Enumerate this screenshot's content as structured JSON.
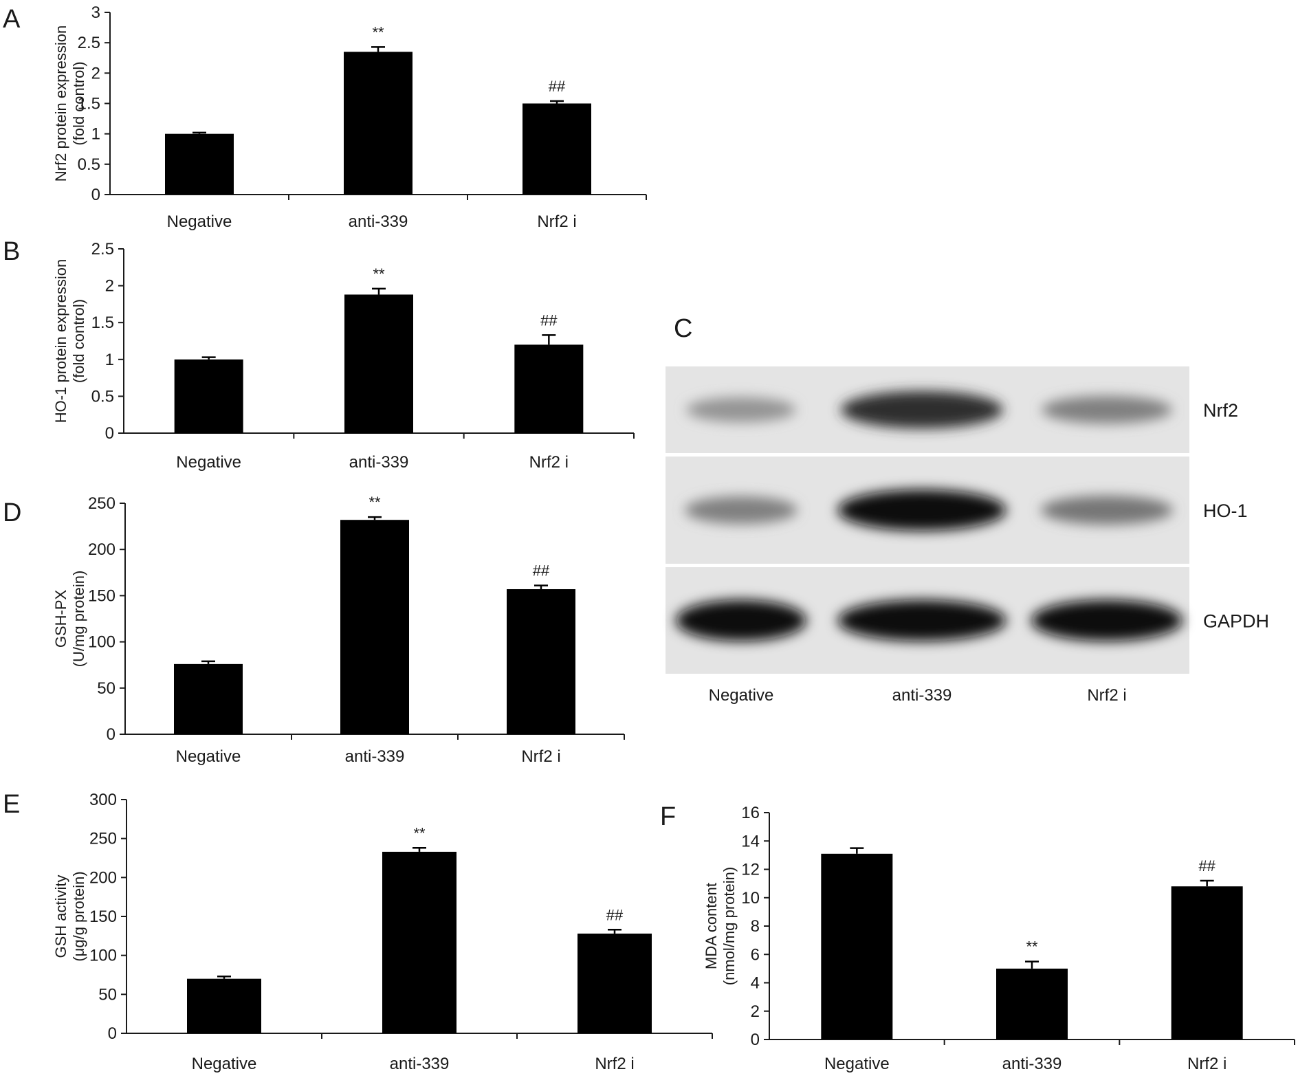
{
  "chart_data": [
    {
      "panel": "A",
      "type": "bar",
      "categories": [
        "Negative",
        "anti-339",
        "Nrf2 i"
      ],
      "values": [
        1.0,
        2.35,
        1.5
      ],
      "errors": [
        0.02,
        0.08,
        0.04
      ],
      "annotations": [
        "",
        "**",
        "##"
      ],
      "ylabel_lines": [
        "Nrf2 protein expression",
        "(fold control)"
      ],
      "ylim": [
        0,
        3
      ],
      "yticks": [
        "0",
        "0.5",
        "1",
        "1.5",
        "2",
        "2.5",
        "3"
      ]
    },
    {
      "panel": "B",
      "type": "bar",
      "categories": [
        "Negative",
        "anti-339",
        "Nrf2 i"
      ],
      "values": [
        1.0,
        1.88,
        1.2
      ],
      "errors": [
        0.03,
        0.08,
        0.13
      ],
      "annotations": [
        "",
        "**",
        "##"
      ],
      "ylabel_lines": [
        "HO-1 protein expression",
        "(fold control)"
      ],
      "ylim": [
        0,
        2.5
      ],
      "yticks": [
        "0",
        "0.5",
        "1",
        "1.5",
        "2",
        "2.5"
      ]
    },
    {
      "panel": "D",
      "type": "bar",
      "categories": [
        "Negative",
        "anti-339",
        "Nrf2 i"
      ],
      "values": [
        76,
        232,
        157
      ],
      "errors": [
        3,
        3,
        4
      ],
      "annotations": [
        "",
        "**",
        "##"
      ],
      "ylabel_lines": [
        "GSH-PX",
        "(U/mg protein)"
      ],
      "ylim": [
        0,
        250
      ],
      "yticks": [
        "0",
        "50",
        "100",
        "150",
        "200",
        "250"
      ]
    },
    {
      "panel": "E",
      "type": "bar",
      "categories": [
        "Negative",
        "anti-339",
        "Nrf2 i"
      ],
      "values": [
        70,
        233,
        128
      ],
      "errors": [
        3,
        5,
        5
      ],
      "annotations": [
        "",
        "**",
        "##"
      ],
      "ylabel_lines": [
        "GSH activity",
        "(μg/g protein)"
      ],
      "ylim": [
        0,
        300
      ],
      "yticks": [
        "0",
        "50",
        "100",
        "150",
        "200",
        "250",
        "300"
      ]
    },
    {
      "panel": "F",
      "type": "bar",
      "categories": [
        "Negative",
        "anti-339",
        "Nrf2 i"
      ],
      "values": [
        13.1,
        5.0,
        10.8
      ],
      "errors": [
        0.4,
        0.5,
        0.4
      ],
      "annotations": [
        "",
        "**",
        "##"
      ],
      "ylabel_lines": [
        "MDA content",
        "(nmol/mg protein)"
      ],
      "ylim": [
        0,
        16
      ],
      "yticks": [
        "0",
        "2",
        "4",
        "6",
        "8",
        "10",
        "12",
        "14",
        "16"
      ]
    }
  ],
  "blot": {
    "panel": "C",
    "lanes": [
      "Negative",
      "anti-339",
      "Nrf2 i"
    ],
    "rows": [
      {
        "label": "Nrf2",
        "intensity": [
          0.35,
          0.85,
          0.45
        ]
      },
      {
        "label": "HO-1",
        "intensity": [
          0.45,
          1.0,
          0.5
        ]
      },
      {
        "label": "GAPDH",
        "intensity": [
          1.0,
          1.0,
          1.0
        ]
      }
    ]
  }
}
